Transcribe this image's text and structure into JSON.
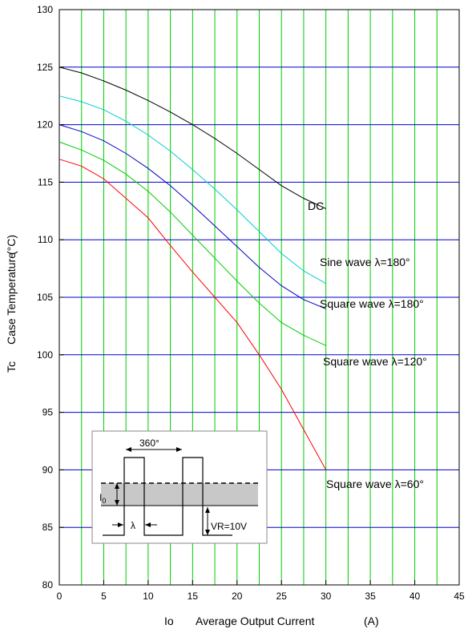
{
  "chart_data": {
    "type": "line",
    "xlabel_symbol": "Io",
    "xlabel": "Average Output Current",
    "xlabel_unit": "(A)",
    "ylabel_symbol": "Tc",
    "ylabel": "Case Temperature",
    "ylabel_unit": "(°C)",
    "xlim": [
      0,
      45
    ],
    "ylim": [
      80,
      130
    ],
    "x_ticks": [
      0,
      5,
      10,
      15,
      20,
      25,
      30,
      35,
      40,
      45
    ],
    "y_ticks": [
      80,
      85,
      90,
      95,
      100,
      105,
      110,
      115,
      120,
      125,
      130
    ],
    "grid": true,
    "colors": {
      "grid_vertical": "#00cc00",
      "grid_horizontal": "#0000cc",
      "axes": "#000000"
    },
    "series": [
      {
        "name": "DC",
        "color": "#000000",
        "x": [
          0,
          2.5,
          5,
          7.5,
          10,
          12.5,
          15,
          17.5,
          20,
          22.5,
          25,
          27.5,
          30
        ],
        "y": [
          125.0,
          124.5,
          123.8,
          123.0,
          122.1,
          121.1,
          120.0,
          118.8,
          117.5,
          116.1,
          114.7,
          113.6,
          112.7
        ]
      },
      {
        "name": "Sine wave  λ=180°",
        "color": "#00cccc",
        "x": [
          0,
          2.5,
          5,
          7.5,
          10,
          12.5,
          15,
          17.5,
          20,
          22.5,
          25,
          27.5,
          30
        ],
        "y": [
          122.5,
          122.0,
          121.3,
          120.3,
          119.1,
          117.7,
          116.1,
          114.4,
          112.6,
          110.7,
          108.8,
          107.3,
          106.2
        ]
      },
      {
        "name": "Square wave  λ=180°",
        "color": "#0000cc",
        "x": [
          0,
          2.5,
          5,
          7.5,
          10,
          12.5,
          15,
          17.5,
          20,
          22.5,
          25,
          27.5,
          30
        ],
        "y": [
          120.0,
          119.4,
          118.6,
          117.5,
          116.2,
          114.7,
          113.0,
          111.2,
          109.4,
          107.6,
          106.0,
          104.8,
          104.0
        ]
      },
      {
        "name": "Square wave  λ=120°",
        "color": "#00cc00",
        "x": [
          0,
          2.5,
          5,
          7.5,
          10,
          12.5,
          15,
          17.5,
          20,
          22.5,
          25,
          27.5,
          30
        ],
        "y": [
          118.5,
          117.8,
          116.9,
          115.7,
          114.2,
          112.4,
          110.4,
          108.4,
          106.4,
          104.5,
          102.8,
          101.7,
          100.8
        ]
      },
      {
        "name": "Square wave  λ=60°",
        "color": "#ff0000",
        "x": [
          0,
          2.5,
          5,
          7.5,
          10,
          12.5,
          15,
          17.5,
          20,
          22.5,
          25,
          27.5,
          30
        ],
        "y": [
          117.0,
          116.4,
          115.3,
          113.6,
          111.9,
          109.5,
          107.2,
          105.0,
          102.8,
          100.0,
          97.0,
          93.5,
          90.0
        ]
      }
    ],
    "inset": {
      "angle_label": "360°",
      "current_label": "I0",
      "lambda_label": "λ",
      "voltage_label": "VR=10V"
    }
  }
}
